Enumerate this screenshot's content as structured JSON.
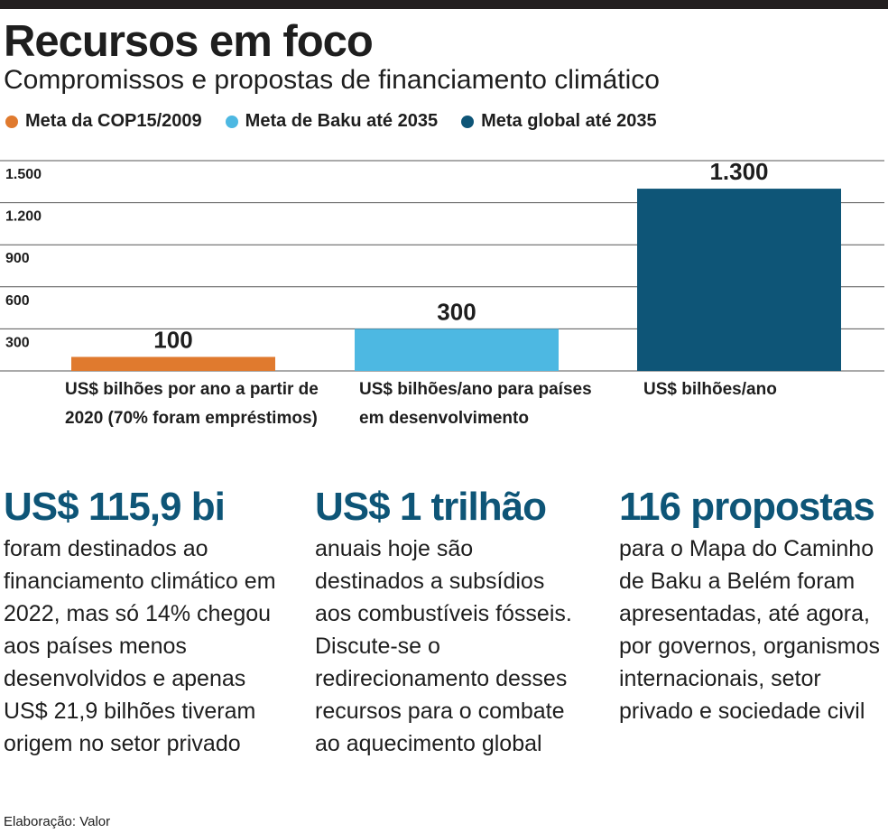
{
  "header": {
    "title": "Recursos em foco",
    "subtitle": "Compromissos e propostas de financiamento climático"
  },
  "legend": [
    {
      "label": "Meta da COP15/2009",
      "color": "#e07a2e"
    },
    {
      "label": "Meta de Baku até 2035",
      "color": "#4db8e2"
    },
    {
      "label": "Meta global até 2035",
      "color": "#0e5577"
    }
  ],
  "chart_data": {
    "type": "bar",
    "categories": [
      "Meta da COP15/2009",
      "Meta de Baku até 2035",
      "Meta global até 2035"
    ],
    "values": [
      100,
      300,
      1300
    ],
    "value_labels": [
      "100",
      "300",
      "1.300"
    ],
    "colors": [
      "#e07a2e",
      "#4db8e2",
      "#0e5577"
    ],
    "yticks": [
      300,
      600,
      900,
      1200,
      1500
    ],
    "ytick_labels": [
      "300",
      "600",
      "900",
      "1.200",
      "1.500"
    ],
    "ylim": [
      0,
      1500
    ],
    "grid": true,
    "category_notes": [
      "US$ bilhões por ano a partir de 2020 (70% foram empréstimos)",
      "US$ bilhões/ano para países em desenvolvimento",
      "US$ bilhões/ano"
    ]
  },
  "stats": [
    {
      "headline": "US$ 115,9 bi",
      "text": "foram destinados ao financiamento climático em 2022, mas só 14% chegou aos países menos desenvolvidos e apenas US$ 21,9 bilhões tiveram origem no setor privado"
    },
    {
      "headline": "US$ 1 trilhão",
      "text": "anuais hoje são destinados a subsídios aos combustíveis fósseis. Discute-se o redirecionamento desses recursos para o combate ao aquecimento global"
    },
    {
      "headline": "116 propostas",
      "text": "para o Mapa do Caminho de Baku a Belém foram apresentadas, até agora, por governos, organismos internacionais, setor privado e sociedade civil"
    }
  ],
  "footer": {
    "source": "Elaboração: Valor"
  }
}
